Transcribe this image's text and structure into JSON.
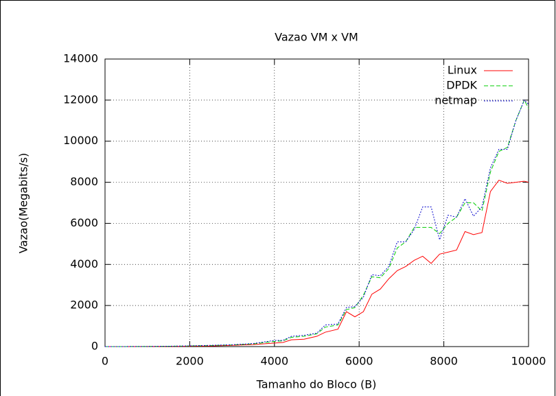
{
  "chart_data": {
    "type": "line",
    "title": "Vazao VM x VM",
    "x_label": "Tamanho do Bloco (B)",
    "y_label": "Vazao(Megabits/s)",
    "x": [
      0,
      500,
      1000,
      1500,
      2000,
      2500,
      3000,
      3500,
      4000,
      4200,
      4400,
      4700,
      5000,
      5200,
      5500,
      5700,
      5900,
      6100,
      6300,
      6500,
      6700,
      6900,
      7100,
      7300,
      7500,
      7700,
      7900,
      8100,
      8300,
      8500,
      8700,
      8900,
      9100,
      9300,
      9500,
      9700,
      9900,
      10000
    ],
    "series": [
      {
        "name": "Linux",
        "color": "#ff0000",
        "values": [
          0,
          1,
          3,
          8,
          15,
          30,
          60,
          100,
          170,
          200,
          330,
          360,
          500,
          700,
          850,
          1700,
          1450,
          1700,
          2550,
          2800,
          3300,
          3700,
          3900,
          4200,
          4400,
          4050,
          4500,
          4600,
          4700,
          5600,
          5450,
          5550,
          7550,
          8100,
          7950,
          8000,
          8050,
          8000
        ]
      },
      {
        "name": "DPDK",
        "color": "#00cc00",
        "values": [
          0,
          2,
          5,
          15,
          30,
          50,
          80,
          130,
          250,
          280,
          450,
          500,
          620,
          950,
          1050,
          1800,
          1900,
          2500,
          3400,
          3350,
          3800,
          4800,
          5100,
          5800,
          5800,
          5800,
          5500,
          6000,
          6300,
          7000,
          7000,
          6600,
          8500,
          9500,
          9700,
          11000,
          12000,
          11600
        ]
      },
      {
        "name": "netmap",
        "color": "#0000cc",
        "values": [
          0,
          2,
          6,
          17,
          35,
          60,
          90,
          150,
          300,
          300,
          500,
          550,
          650,
          1050,
          1100,
          1900,
          1950,
          2400,
          3500,
          3450,
          3900,
          5100,
          5100,
          5700,
          6800,
          6800,
          5200,
          6400,
          6300,
          7200,
          6350,
          6800,
          8700,
          9600,
          9600,
          11000,
          12000,
          11800
        ]
      }
    ],
    "xlim": [
      0,
      10000
    ],
    "xticks": [
      0,
      2000,
      4000,
      6000,
      8000,
      10000
    ],
    "ylim": [
      0,
      14000
    ],
    "yticks": [
      0,
      2000,
      4000,
      6000,
      8000,
      10000,
      12000,
      14000
    ],
    "grid": true,
    "legend": "top-right"
  }
}
